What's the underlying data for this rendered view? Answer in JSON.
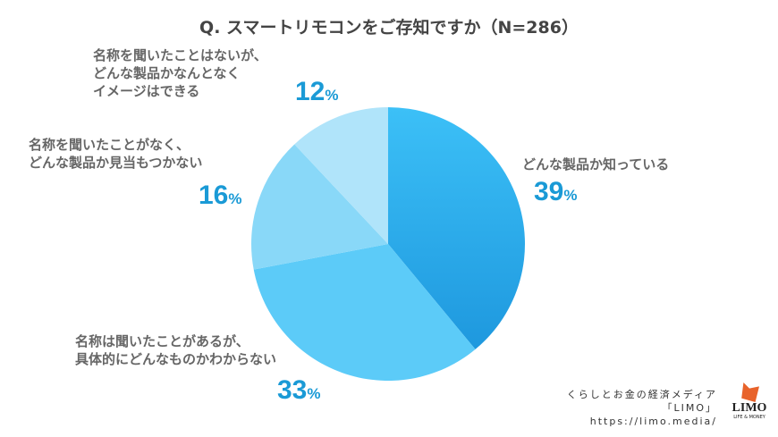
{
  "chart_data": {
    "type": "pie",
    "title": "Q. スマートリモコンをご存知ですか（N=286）",
    "slices": [
      {
        "label": [
          "どんな製品か知っている"
        ],
        "value": 39,
        "color": "#2aaef0"
      },
      {
        "label": [
          "名称は聞いたことがあるが、",
          "具体的にどんなものかわからない"
        ],
        "value": 33,
        "color": "#5ccbf8"
      },
      {
        "label": [
          "名称を聞いたことがなく、",
          "どんな製品か見当もつかない"
        ],
        "value": 16,
        "color": "#89d8f8"
      },
      {
        "label": [
          "名称を聞いたことはないが、",
          "どんな製品かなんとなく",
          "イメージはできる"
        ],
        "value": 12,
        "color": "#b0e4fa"
      }
    ],
    "unit": "%"
  },
  "credit": {
    "line1": "くらしとお金の経済メディア",
    "line2": "「LIMO」",
    "line3": "https://limo.media/"
  },
  "logo": {
    "brand": "LIMO",
    "tagline": "LIFE & MONEY"
  }
}
